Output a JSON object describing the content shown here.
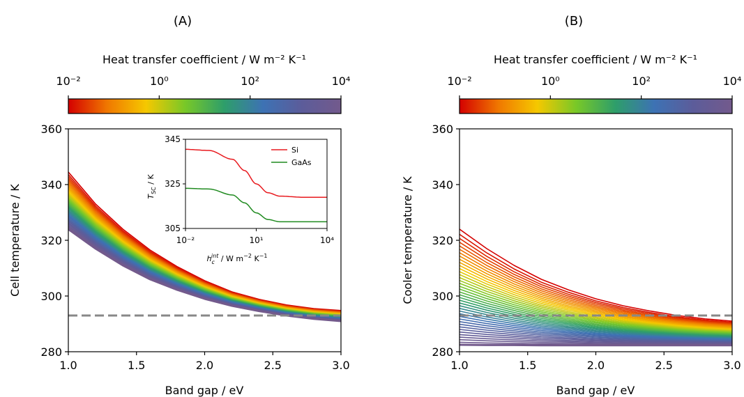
{
  "panels": [
    {
      "label": "(A)",
      "colorbar": {
        "label": "Heat transfer coefficient / W m⁻² K⁻¹",
        "ticks": [
          "10⁻²",
          "10⁰",
          "10²",
          "10⁴"
        ],
        "colormap": [
          "#d40000",
          "#f07800",
          "#f5c800",
          "#78c828",
          "#2e9e6a",
          "#3d72b4",
          "#5c5c9a",
          "#735a8c"
        ]
      }
    },
    {
      "label": "(B)",
      "colorbar": {
        "label": "Heat transfer coefficient / W m⁻² K⁻¹",
        "ticks": [
          "10⁻²",
          "10⁰",
          "10²",
          "10⁴"
        ],
        "colormap": [
          "#d40000",
          "#f07800",
          "#f5c800",
          "#78c828",
          "#2e9e6a",
          "#3d72b4",
          "#5c5c9a",
          "#735a8c"
        ]
      }
    }
  ],
  "chart_data": [
    {
      "type": "line",
      "xlabel": "Band gap / eV",
      "ylabel": "Cell temperature / K",
      "xlim": [
        1.0,
        3.0
      ],
      "ylim": [
        280,
        360
      ],
      "xticks": [
        "1.0",
        "1.5",
        "2.0",
        "2.5",
        "3.0"
      ],
      "yticks": [
        "280",
        "300",
        "320",
        "340",
        "360"
      ],
      "x": [
        1.0,
        1.2,
        1.4,
        1.6,
        1.8,
        2.0,
        2.2,
        2.4,
        2.6,
        2.8,
        3.0
      ],
      "curve_family": {
        "parameter": "Heat transfer coefficient",
        "log10_h_range": [
          -2,
          4
        ],
        "count": 40,
        "upper_envelope": [
          344.5,
          333.0,
          324.0,
          316.5,
          310.5,
          305.5,
          301.5,
          298.8,
          296.8,
          295.5,
          294.8
        ],
        "lower_envelope": [
          324.0,
          317.0,
          311.0,
          306.0,
          302.2,
          299.0,
          296.5,
          294.6,
          293.0,
          291.8,
          291.0
        ]
      },
      "reference_line": 293,
      "inset": {
        "type": "line",
        "xlabel": "h_c^int / W m⁻² K⁻¹",
        "ylabel": "T_SC / K",
        "xscale": "log",
        "xlim": [
          0.01,
          10000
        ],
        "ylim": [
          305,
          345
        ],
        "xticks": [
          "10⁻²",
          "10¹",
          "10⁴"
        ],
        "yticks": [
          "305",
          "325",
          "345"
        ],
        "legend": "top-right",
        "log10_x": [
          -2,
          -1,
          0,
          0.5,
          1,
          1.5,
          2,
          3,
          4
        ],
        "series": [
          {
            "name": "Si",
            "color": "#e8191e",
            "values": [
              340.5,
              340.0,
              336.0,
              331.0,
              325.0,
              321.0,
              319.5,
              319.0,
              319.0
            ]
          },
          {
            "name": "GaAs",
            "color": "#1f8a1f",
            "values": [
              323.0,
              322.7,
              320.0,
              316.5,
              312.0,
              309.0,
              308.0,
              308.0,
              308.0
            ]
          }
        ]
      }
    },
    {
      "type": "line",
      "xlabel": "Band gap / eV",
      "ylabel": "Cooler temperature / K",
      "xlim": [
        1.0,
        3.0
      ],
      "ylim": [
        280,
        360
      ],
      "xticks": [
        "1.0",
        "1.5",
        "2.0",
        "2.5",
        "3.0"
      ],
      "yticks": [
        "280",
        "300",
        "320",
        "340",
        "360"
      ],
      "x": [
        1.0,
        1.2,
        1.4,
        1.6,
        1.8,
        2.0,
        2.2,
        2.4,
        2.6,
        2.8,
        3.0
      ],
      "curve_family": {
        "parameter": "Heat transfer coefficient",
        "log10_h_range": [
          -2,
          4
        ],
        "count": 40,
        "upper_envelope": [
          324.0,
          317.0,
          311.0,
          306.0,
          302.2,
          299.0,
          296.5,
          294.6,
          293.0,
          291.8,
          291.0
        ],
        "lower_envelope": [
          282.5,
          282.4,
          282.4,
          282.3,
          282.3,
          282.3,
          282.3,
          282.3,
          282.3,
          282.3,
          282.3
        ]
      },
      "reference_line": 293
    }
  ]
}
